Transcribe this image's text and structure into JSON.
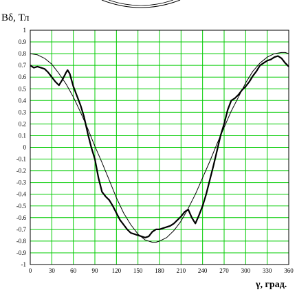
{
  "chart_data": {
    "type": "line",
    "ylabel": "Bδ, Тл",
    "xlabel": "γ, град.",
    "xlim": [
      0,
      360
    ],
    "ylim": [
      -1,
      1
    ],
    "x_ticks": [
      "0",
      "30",
      "60",
      "90",
      "120",
      "150",
      "180",
      "210",
      "240",
      "270",
      "300",
      "330",
      "360"
    ],
    "y_ticks": [
      "1",
      "0.9",
      "0.8",
      "0.7",
      "0.6",
      "0.5",
      "0.4",
      "0.3",
      "0.2",
      "0.1",
      "0",
      "-0.1",
      "-0.2",
      "-0.3",
      "-0.4",
      "-0.5",
      "-0.6",
      "-0.7",
      "-0.8",
      "-0.9",
      "-1"
    ],
    "grid": true,
    "grid_color": "#00cc00",
    "line_color": "#000000",
    "series": [
      {
        "style": "thick",
        "x": [
          0,
          5,
          10,
          15,
          20,
          25,
          30,
          35,
          40,
          45,
          50,
          52,
          55,
          60,
          65,
          70,
          75,
          80,
          85,
          90,
          95,
          100,
          105,
          110,
          115,
          120,
          125,
          130,
          135,
          140,
          145,
          150,
          155,
          160,
          165,
          170,
          175,
          180,
          185,
          190,
          195,
          200,
          205,
          210,
          215,
          220,
          225,
          230,
          235,
          240,
          245,
          250,
          255,
          260,
          265,
          270,
          275,
          280,
          285,
          290,
          295,
          300,
          305,
          310,
          315,
          320,
          325,
          330,
          335,
          340,
          345,
          350,
          355,
          360
        ],
        "y": [
          0.7,
          0.68,
          0.69,
          0.68,
          0.67,
          0.64,
          0.6,
          0.56,
          0.53,
          0.58,
          0.64,
          0.66,
          0.63,
          0.52,
          0.44,
          0.36,
          0.26,
          0.12,
          0.0,
          -0.1,
          -0.26,
          -0.38,
          -0.42,
          -0.45,
          -0.5,
          -0.56,
          -0.62,
          -0.66,
          -0.7,
          -0.73,
          -0.74,
          -0.75,
          -0.76,
          -0.77,
          -0.76,
          -0.72,
          -0.7,
          -0.7,
          -0.69,
          -0.68,
          -0.67,
          -0.65,
          -0.62,
          -0.59,
          -0.55,
          -0.53,
          -0.6,
          -0.65,
          -0.58,
          -0.5,
          -0.4,
          -0.28,
          -0.16,
          -0.03,
          0.1,
          0.2,
          0.32,
          0.4,
          0.42,
          0.45,
          0.49,
          0.52,
          0.56,
          0.61,
          0.65,
          0.7,
          0.72,
          0.74,
          0.75,
          0.77,
          0.78,
          0.76,
          0.72,
          0.69
        ]
      },
      {
        "style": "thin",
        "x": [
          0,
          10,
          20,
          30,
          40,
          50,
          60,
          70,
          80,
          90,
          100,
          110,
          120,
          130,
          140,
          150,
          160,
          170,
          175,
          180,
          190,
          200,
          210,
          220,
          230,
          240,
          250,
          260,
          270,
          280,
          290,
          300,
          310,
          320,
          330,
          340,
          350,
          355,
          360
        ],
        "y": [
          0.8,
          0.79,
          0.76,
          0.71,
          0.63,
          0.54,
          0.43,
          0.3,
          0.16,
          0.01,
          -0.13,
          -0.28,
          -0.43,
          -0.56,
          -0.66,
          -0.74,
          -0.79,
          -0.81,
          -0.81,
          -0.8,
          -0.77,
          -0.71,
          -0.63,
          -0.52,
          -0.4,
          -0.26,
          -0.12,
          0.03,
          0.17,
          0.31,
          0.43,
          0.55,
          0.65,
          0.72,
          0.77,
          0.8,
          0.81,
          0.81,
          0.8
        ]
      }
    ]
  }
}
